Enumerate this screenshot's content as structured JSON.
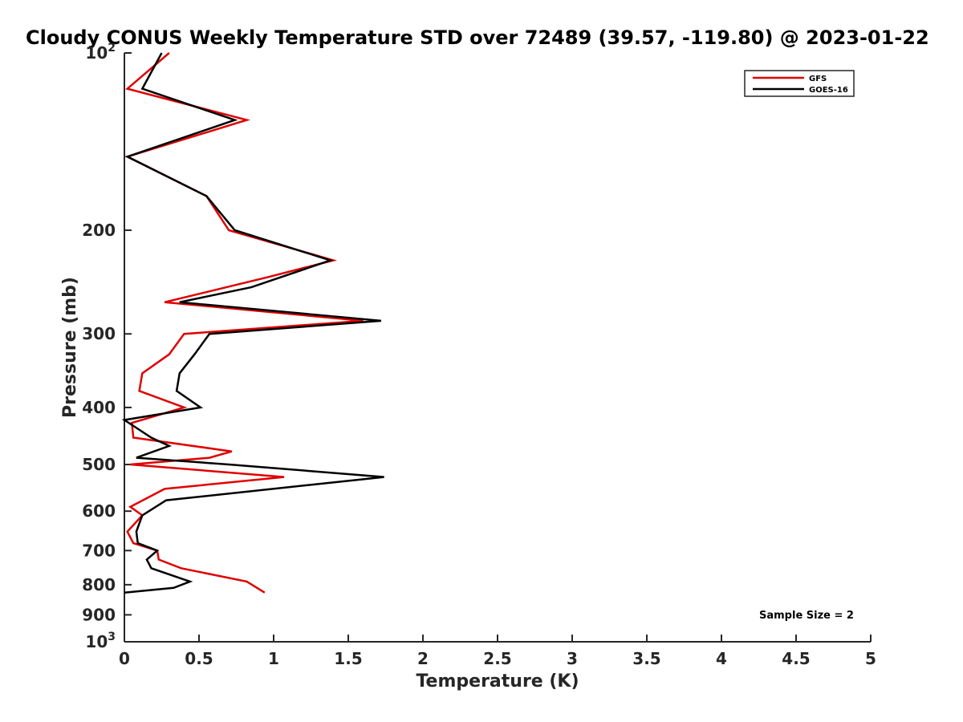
{
  "chart_data": {
    "type": "line",
    "title": "Cloudy CONUS Weekly Temperature STD over 72489 (39.57, -119.80) @ 2023-01-22",
    "xlabel": "Temperature (K)",
    "ylabel": "Pressure (mb)",
    "xlim": [
      0,
      5
    ],
    "ylim": [
      100,
      1000
    ],
    "y_scale": "log",
    "y_reversed": true,
    "grid": false,
    "legend_position": "top-right",
    "x_ticks": [
      {
        "value": 0,
        "label": "0"
      },
      {
        "value": 0.5,
        "label": "0.5"
      },
      {
        "value": 1,
        "label": "1"
      },
      {
        "value": 1.5,
        "label": "1.5"
      },
      {
        "value": 2,
        "label": "2"
      },
      {
        "value": 2.5,
        "label": "2.5"
      },
      {
        "value": 3,
        "label": "3"
      },
      {
        "value": 3.5,
        "label": "3.5"
      },
      {
        "value": 4,
        "label": "4"
      },
      {
        "value": 4.5,
        "label": "4.5"
      },
      {
        "value": 5,
        "label": "5"
      }
    ],
    "y_ticks": [
      {
        "value": 100,
        "label": "10",
        "sup": "2"
      },
      {
        "value": 200,
        "label": "200"
      },
      {
        "value": 300,
        "label": "300"
      },
      {
        "value": 400,
        "label": "400"
      },
      {
        "value": 500,
        "label": "500"
      },
      {
        "value": 600,
        "label": "600"
      },
      {
        "value": 700,
        "label": "700"
      },
      {
        "value": 800,
        "label": "800"
      },
      {
        "value": 900,
        "label": "900"
      },
      {
        "value": 1000,
        "label": "10",
        "sup": "3"
      }
    ],
    "series": [
      {
        "name": "GFS",
        "color": "#e00000",
        "points": [
          [
            0.3,
            100
          ],
          [
            0.02,
            115
          ],
          [
            0.82,
            130
          ],
          [
            0.02,
            150
          ],
          [
            0.55,
            175
          ],
          [
            0.7,
            200
          ],
          [
            1.4,
            225
          ],
          [
            0.97,
            240
          ],
          [
            0.27,
            265
          ],
          [
            1.6,
            285
          ],
          [
            0.4,
            300
          ],
          [
            0.3,
            325
          ],
          [
            0.12,
            350
          ],
          [
            0.1,
            375
          ],
          [
            0.4,
            400
          ],
          [
            0.05,
            425
          ],
          [
            0.06,
            450
          ],
          [
            0.72,
            475
          ],
          [
            0.57,
            487
          ],
          [
            0.04,
            500
          ],
          [
            1.07,
            525
          ],
          [
            0.27,
            550
          ],
          [
            0.04,
            590
          ],
          [
            0.12,
            610
          ],
          [
            0.02,
            650
          ],
          [
            0.06,
            680
          ],
          [
            0.22,
            700
          ],
          [
            0.23,
            725
          ],
          [
            0.38,
            750
          ],
          [
            0.82,
            790
          ],
          [
            0.94,
            825
          ]
        ]
      },
      {
        "name": "GOES-16",
        "color": "#000000",
        "points": [
          [
            0.25,
            100
          ],
          [
            0.12,
            115
          ],
          [
            0.74,
            130
          ],
          [
            0.02,
            150
          ],
          [
            0.55,
            175
          ],
          [
            0.74,
            200
          ],
          [
            1.38,
            225
          ],
          [
            0.85,
            250
          ],
          [
            0.37,
            265
          ],
          [
            1.72,
            285
          ],
          [
            0.57,
            300
          ],
          [
            0.47,
            325
          ],
          [
            0.37,
            350
          ],
          [
            0.35,
            375
          ],
          [
            0.51,
            400
          ],
          [
            0.0,
            420
          ],
          [
            0.18,
            450
          ],
          [
            0.3,
            465
          ],
          [
            0.08,
            487
          ],
          [
            0.7,
            500
          ],
          [
            1.74,
            525
          ],
          [
            0.28,
            575
          ],
          [
            0.12,
            610
          ],
          [
            0.08,
            650
          ],
          [
            0.09,
            680
          ],
          [
            0.22,
            700
          ],
          [
            0.15,
            725
          ],
          [
            0.18,
            750
          ],
          [
            0.44,
            790
          ],
          [
            0.33,
            810
          ],
          [
            0.0,
            825
          ]
        ]
      }
    ],
    "annotations": [
      {
        "text": "Sample Size = 2"
      }
    ]
  }
}
